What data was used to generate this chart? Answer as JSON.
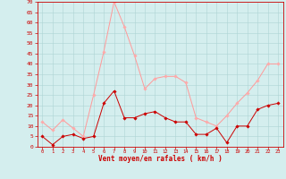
{
  "x": [
    0,
    1,
    2,
    3,
    4,
    5,
    6,
    7,
    8,
    9,
    10,
    11,
    12,
    13,
    14,
    15,
    16,
    17,
    18,
    19,
    20,
    21,
    22,
    23
  ],
  "wind_mean": [
    5,
    1,
    5,
    6,
    4,
    5,
    21,
    27,
    14,
    14,
    16,
    17,
    14,
    12,
    12,
    6,
    6,
    9,
    2,
    10,
    10,
    18,
    20,
    21
  ],
  "wind_gust": [
    12,
    8,
    13,
    9,
    5,
    25,
    46,
    70,
    58,
    44,
    28,
    33,
    34,
    34,
    31,
    14,
    12,
    10,
    15,
    21,
    26,
    32,
    40,
    40
  ],
  "ylim": [
    0,
    70
  ],
  "yticks": [
    0,
    5,
    10,
    15,
    20,
    25,
    30,
    35,
    40,
    45,
    50,
    55,
    60,
    65,
    70
  ],
  "xlabel": "Vent moyen/en rafales ( km/h )",
  "background_color": "#d4eeee",
  "grid_color": "#aed4d4",
  "line_color_mean": "#cc0000",
  "line_color_gust": "#ff9999",
  "marker_color_mean": "#cc0000",
  "marker_color_gust": "#ffaaaa",
  "spine_color": "#cc0000",
  "tick_color": "#cc0000",
  "label_color": "#cc0000"
}
